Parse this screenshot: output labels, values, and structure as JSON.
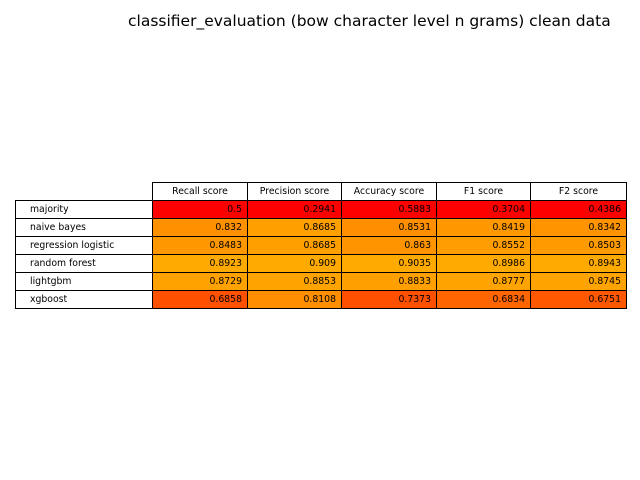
{
  "chart_data": {
    "type": "table",
    "title": "classifier_evaluation (bow character level n grams) clean data",
    "columns": [
      "Recall score",
      "Precision score",
      "Accuracy score",
      "F1 score",
      "F2 score"
    ],
    "rows": [
      "majority",
      "naive bayes",
      "regression logistic",
      "random forest",
      "lightgbm",
      "xgboost"
    ],
    "values": [
      [
        "0.5",
        "0.2941",
        "0.5883",
        "0.3704",
        "0.4386"
      ],
      [
        "0.832",
        "0.8685",
        "0.8531",
        "0.8419",
        "0.8342"
      ],
      [
        "0.8483",
        "0.8685",
        "0.863",
        "0.8552",
        "0.8503"
      ],
      [
        "0.8923",
        "0.909",
        "0.9035",
        "0.8986",
        "0.8943"
      ],
      [
        "0.8729",
        "0.8853",
        "0.8833",
        "0.8777",
        "0.8745"
      ],
      [
        "0.6858",
        "0.8108",
        "0.7373",
        "0.6834",
        "0.6751"
      ]
    ],
    "colormap": "autumn"
  }
}
